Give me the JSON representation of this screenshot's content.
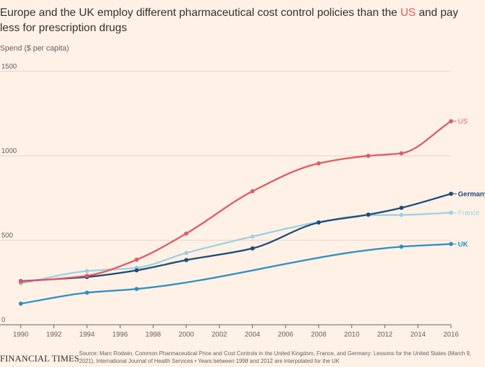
{
  "title_part1": "Europe and the UK employ different pharmaceutical cost control policies than the ",
  "title_us": "US",
  "title_part2": " and pay less for prescription drugs",
  "footer": {
    "logo": "FINANCIAL TIMES",
    "source": "Source: Marc Rodwin, Common Pharmaceutical Price and Cost Controls in the United Kingdom, France, and Germany: Lessons for the United States (March 9, 2021), International Journal of Health Services • Years between 1998 and 2012 are interpolated for the UK"
  },
  "chart_data": {
    "type": "line",
    "ylabel": "Spend ($ per capita)",
    "xlabel": "",
    "xlim": [
      1990,
      2016
    ],
    "ylim": [
      0,
      1500
    ],
    "xticks": [
      1990,
      1992,
      1994,
      1996,
      1998,
      2000,
      2002,
      2004,
      2006,
      2008,
      2010,
      2012,
      2014,
      2016
    ],
    "yticks": [
      0,
      500,
      1000,
      1500
    ],
    "grid": "horizontal",
    "legend": "labels at line ends",
    "series": [
      {
        "name": "US",
        "color": "#e15a66",
        "points": [
          [
            1990,
            255
          ],
          [
            1994,
            290
          ],
          [
            1997,
            385
          ],
          [
            2000,
            540
          ],
          [
            2004,
            790
          ],
          [
            2008,
            955
          ],
          [
            2011,
            1000
          ],
          [
            2013,
            1015
          ],
          [
            2016,
            1205
          ]
        ]
      },
      {
        "name": "Germany",
        "color": "#1e4b7a",
        "points": [
          [
            1990,
            258
          ],
          [
            1994,
            283
          ],
          [
            1997,
            322
          ],
          [
            2000,
            383
          ],
          [
            2004,
            452
          ],
          [
            2008,
            605
          ],
          [
            2011,
            652
          ],
          [
            2013,
            692
          ],
          [
            2016,
            775
          ]
        ]
      },
      {
        "name": "France",
        "color": "#9dd1e3",
        "points": [
          [
            1990,
            245
          ],
          [
            1994,
            318
          ],
          [
            1997,
            337
          ],
          [
            2000,
            425
          ],
          [
            2004,
            522
          ],
          [
            2008,
            608
          ],
          [
            2011,
            648
          ],
          [
            2013,
            650
          ],
          [
            2016,
            663
          ]
        ]
      },
      {
        "name": "UK",
        "color": "#2c8fc6",
        "points": [
          [
            1990,
            125
          ],
          [
            1994,
            190
          ],
          [
            1997,
            212
          ],
          [
            2013,
            462
          ],
          [
            2016,
            478
          ]
        ]
      }
    ]
  }
}
